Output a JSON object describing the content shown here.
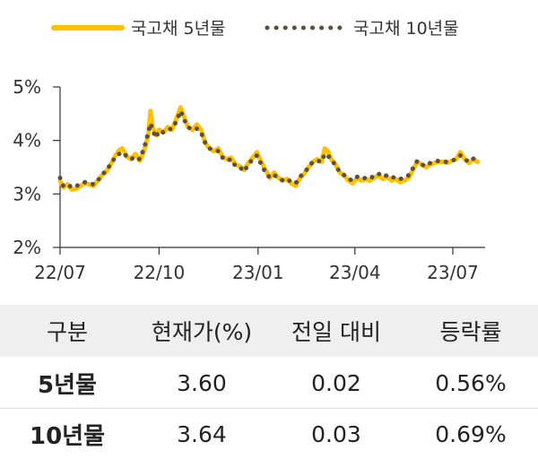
{
  "chart_data": {
    "type": "line",
    "x_ticks": [
      "22/07",
      "22/10",
      "23/01",
      "23/04",
      "23/07"
    ],
    "y_ticks": [
      "2%",
      "3%",
      "4%",
      "5%"
    ],
    "ylim": [
      2,
      5
    ],
    "xlim": [
      "2022-07-01",
      "2023-07-31"
    ],
    "grid": false,
    "legend_position": "top",
    "series": [
      {
        "name": "국고채 5년물",
        "style": "solid",
        "color": "#FFC000",
        "points": [
          [
            "2022-07-01",
            3.25
          ],
          [
            "2022-07-04",
            3.12
          ],
          [
            "2022-07-08",
            3.18
          ],
          [
            "2022-07-12",
            3.08
          ],
          [
            "2022-07-16",
            3.1
          ],
          [
            "2022-07-20",
            3.15
          ],
          [
            "2022-07-24",
            3.2
          ],
          [
            "2022-07-28",
            3.18
          ],
          [
            "2022-08-01",
            3.15
          ],
          [
            "2022-08-05",
            3.25
          ],
          [
            "2022-08-09",
            3.35
          ],
          [
            "2022-08-13",
            3.42
          ],
          [
            "2022-08-17",
            3.55
          ],
          [
            "2022-08-21",
            3.7
          ],
          [
            "2022-08-25",
            3.82
          ],
          [
            "2022-08-28",
            3.85
          ],
          [
            "2022-09-01",
            3.7
          ],
          [
            "2022-09-05",
            3.65
          ],
          [
            "2022-09-09",
            3.75
          ],
          [
            "2022-09-13",
            3.62
          ],
          [
            "2022-09-17",
            3.8
          ],
          [
            "2022-09-21",
            4.1
          ],
          [
            "2022-09-23",
            4.55
          ],
          [
            "2022-09-25",
            4.25
          ],
          [
            "2022-09-28",
            4.1
          ],
          [
            "2022-10-01",
            4.2
          ],
          [
            "2022-10-05",
            4.15
          ],
          [
            "2022-10-09",
            4.25
          ],
          [
            "2022-10-13",
            4.2
          ],
          [
            "2022-10-17",
            4.4
          ],
          [
            "2022-10-21",
            4.62
          ],
          [
            "2022-10-24",
            4.45
          ],
          [
            "2022-10-28",
            4.25
          ],
          [
            "2022-11-01",
            4.2
          ],
          [
            "2022-11-05",
            4.3
          ],
          [
            "2022-11-09",
            4.2
          ],
          [
            "2022-11-13",
            3.95
          ],
          [
            "2022-11-17",
            3.85
          ],
          [
            "2022-11-21",
            3.8
          ],
          [
            "2022-11-25",
            3.85
          ],
          [
            "2022-11-29",
            3.7
          ],
          [
            "2022-12-03",
            3.65
          ],
          [
            "2022-12-07",
            3.68
          ],
          [
            "2022-12-11",
            3.55
          ],
          [
            "2022-12-15",
            3.52
          ],
          [
            "2022-12-19",
            3.45
          ],
          [
            "2022-12-23",
            3.58
          ],
          [
            "2022-12-27",
            3.68
          ],
          [
            "2022-12-31",
            3.78
          ],
          [
            "2023-01-04",
            3.6
          ],
          [
            "2023-01-08",
            3.45
          ],
          [
            "2023-01-12",
            3.3
          ],
          [
            "2023-01-16",
            3.4
          ],
          [
            "2023-01-20",
            3.3
          ],
          [
            "2023-01-24",
            3.25
          ],
          [
            "2023-01-28",
            3.28
          ],
          [
            "2023-02-01",
            3.2
          ],
          [
            "2023-02-05",
            3.15
          ],
          [
            "2023-02-09",
            3.3
          ],
          [
            "2023-02-13",
            3.38
          ],
          [
            "2023-02-17",
            3.5
          ],
          [
            "2023-02-21",
            3.6
          ],
          [
            "2023-02-25",
            3.65
          ],
          [
            "2023-03-01",
            3.6
          ],
          [
            "2023-03-04",
            3.85
          ],
          [
            "2023-03-07",
            3.8
          ],
          [
            "2023-03-10",
            3.65
          ],
          [
            "2023-03-14",
            3.55
          ],
          [
            "2023-03-18",
            3.4
          ],
          [
            "2023-03-22",
            3.35
          ],
          [
            "2023-03-26",
            3.25
          ],
          [
            "2023-03-30",
            3.2
          ],
          [
            "2023-04-03",
            3.3
          ],
          [
            "2023-04-07",
            3.25
          ],
          [
            "2023-04-11",
            3.28
          ],
          [
            "2023-04-15",
            3.25
          ],
          [
            "2023-04-19",
            3.3
          ],
          [
            "2023-04-23",
            3.35
          ],
          [
            "2023-04-27",
            3.28
          ],
          [
            "2023-05-01",
            3.32
          ],
          [
            "2023-05-05",
            3.25
          ],
          [
            "2023-05-09",
            3.28
          ],
          [
            "2023-05-13",
            3.22
          ],
          [
            "2023-05-17",
            3.25
          ],
          [
            "2023-05-21",
            3.3
          ],
          [
            "2023-05-25",
            3.45
          ],
          [
            "2023-05-29",
            3.6
          ],
          [
            "2023-06-02",
            3.55
          ],
          [
            "2023-06-06",
            3.5
          ],
          [
            "2023-06-10",
            3.55
          ],
          [
            "2023-06-14",
            3.58
          ],
          [
            "2023-06-18",
            3.6
          ],
          [
            "2023-06-22",
            3.6
          ],
          [
            "2023-06-26",
            3.58
          ],
          [
            "2023-06-30",
            3.62
          ],
          [
            "2023-07-04",
            3.65
          ],
          [
            "2023-07-08",
            3.78
          ],
          [
            "2023-07-12",
            3.65
          ],
          [
            "2023-07-16",
            3.58
          ],
          [
            "2023-07-20",
            3.65
          ],
          [
            "2023-07-24",
            3.6
          ]
        ]
      },
      {
        "name": "국고채 10년물",
        "style": "dotted",
        "color": "#5A5040",
        "points": [
          [
            "2022-07-01",
            3.3
          ],
          [
            "2022-07-04",
            3.15
          ],
          [
            "2022-07-08",
            3.18
          ],
          [
            "2022-07-12",
            3.12
          ],
          [
            "2022-07-16",
            3.15
          ],
          [
            "2022-07-20",
            3.18
          ],
          [
            "2022-07-24",
            3.22
          ],
          [
            "2022-07-28",
            3.2
          ],
          [
            "2022-08-01",
            3.18
          ],
          [
            "2022-08-05",
            3.25
          ],
          [
            "2022-08-09",
            3.35
          ],
          [
            "2022-08-13",
            3.45
          ],
          [
            "2022-08-17",
            3.55
          ],
          [
            "2022-08-21",
            3.68
          ],
          [
            "2022-08-25",
            3.75
          ],
          [
            "2022-08-28",
            3.78
          ],
          [
            "2022-09-01",
            3.7
          ],
          [
            "2022-09-05",
            3.65
          ],
          [
            "2022-09-09",
            3.7
          ],
          [
            "2022-09-13",
            3.65
          ],
          [
            "2022-09-17",
            3.85
          ],
          [
            "2022-09-21",
            4.15
          ],
          [
            "2022-09-23",
            4.32
          ],
          [
            "2022-09-25",
            4.2
          ],
          [
            "2022-09-28",
            4.05
          ],
          [
            "2022-10-01",
            4.18
          ],
          [
            "2022-10-05",
            4.15
          ],
          [
            "2022-10-09",
            4.2
          ],
          [
            "2022-10-13",
            4.22
          ],
          [
            "2022-10-17",
            4.35
          ],
          [
            "2022-10-21",
            4.55
          ],
          [
            "2022-10-24",
            4.4
          ],
          [
            "2022-10-28",
            4.25
          ],
          [
            "2022-11-01",
            4.2
          ],
          [
            "2022-11-05",
            4.22
          ],
          [
            "2022-11-09",
            4.15
          ],
          [
            "2022-11-13",
            3.95
          ],
          [
            "2022-11-17",
            3.85
          ],
          [
            "2022-11-21",
            3.82
          ],
          [
            "2022-11-25",
            3.8
          ],
          [
            "2022-11-29",
            3.68
          ],
          [
            "2022-12-03",
            3.62
          ],
          [
            "2022-12-07",
            3.65
          ],
          [
            "2022-12-11",
            3.52
          ],
          [
            "2022-12-15",
            3.5
          ],
          [
            "2022-12-19",
            3.42
          ],
          [
            "2022-12-23",
            3.55
          ],
          [
            "2022-12-27",
            3.65
          ],
          [
            "2022-12-31",
            3.72
          ],
          [
            "2023-01-04",
            3.55
          ],
          [
            "2023-01-08",
            3.4
          ],
          [
            "2023-01-12",
            3.3
          ],
          [
            "2023-01-16",
            3.35
          ],
          [
            "2023-01-20",
            3.3
          ],
          [
            "2023-01-24",
            3.25
          ],
          [
            "2023-01-28",
            3.28
          ],
          [
            "2023-02-01",
            3.22
          ],
          [
            "2023-02-05",
            3.2
          ],
          [
            "2023-02-09",
            3.32
          ],
          [
            "2023-02-13",
            3.4
          ],
          [
            "2023-02-17",
            3.5
          ],
          [
            "2023-02-21",
            3.6
          ],
          [
            "2023-02-25",
            3.62
          ],
          [
            "2023-03-01",
            3.6
          ],
          [
            "2023-03-04",
            3.75
          ],
          [
            "2023-03-07",
            3.72
          ],
          [
            "2023-03-10",
            3.62
          ],
          [
            "2023-03-14",
            3.55
          ],
          [
            "2023-03-18",
            3.4
          ],
          [
            "2023-03-22",
            3.35
          ],
          [
            "2023-03-26",
            3.28
          ],
          [
            "2023-03-30",
            3.25
          ],
          [
            "2023-04-03",
            3.32
          ],
          [
            "2023-04-07",
            3.28
          ],
          [
            "2023-04-11",
            3.3
          ],
          [
            "2023-04-15",
            3.28
          ],
          [
            "2023-04-19",
            3.35
          ],
          [
            "2023-04-23",
            3.38
          ],
          [
            "2023-04-27",
            3.32
          ],
          [
            "2023-05-01",
            3.35
          ],
          [
            "2023-05-05",
            3.3
          ],
          [
            "2023-05-09",
            3.32
          ],
          [
            "2023-05-13",
            3.28
          ],
          [
            "2023-05-17",
            3.3
          ],
          [
            "2023-05-21",
            3.35
          ],
          [
            "2023-05-25",
            3.48
          ],
          [
            "2023-05-29",
            3.62
          ],
          [
            "2023-06-02",
            3.55
          ],
          [
            "2023-06-06",
            3.52
          ],
          [
            "2023-06-10",
            3.58
          ],
          [
            "2023-06-14",
            3.6
          ],
          [
            "2023-06-18",
            3.62
          ],
          [
            "2023-06-22",
            3.6
          ],
          [
            "2023-06-26",
            3.6
          ],
          [
            "2023-06-30",
            3.62
          ],
          [
            "2023-07-04",
            3.65
          ],
          [
            "2023-07-08",
            3.72
          ],
          [
            "2023-07-12",
            3.65
          ],
          [
            "2023-07-16",
            3.6
          ],
          [
            "2023-07-20",
            3.66
          ],
          [
            "2023-07-24",
            3.64
          ]
        ]
      }
    ]
  },
  "table": {
    "headers": [
      "구분",
      "현재가(%)",
      "전일 대비",
      "등락률"
    ],
    "rows": [
      {
        "label": "5년물",
        "price": "3.60",
        "change": "0.02",
        "rate": "0.56%"
      },
      {
        "label": "10년물",
        "price": "3.64",
        "change": "0.03",
        "rate": "0.69%"
      }
    ]
  }
}
